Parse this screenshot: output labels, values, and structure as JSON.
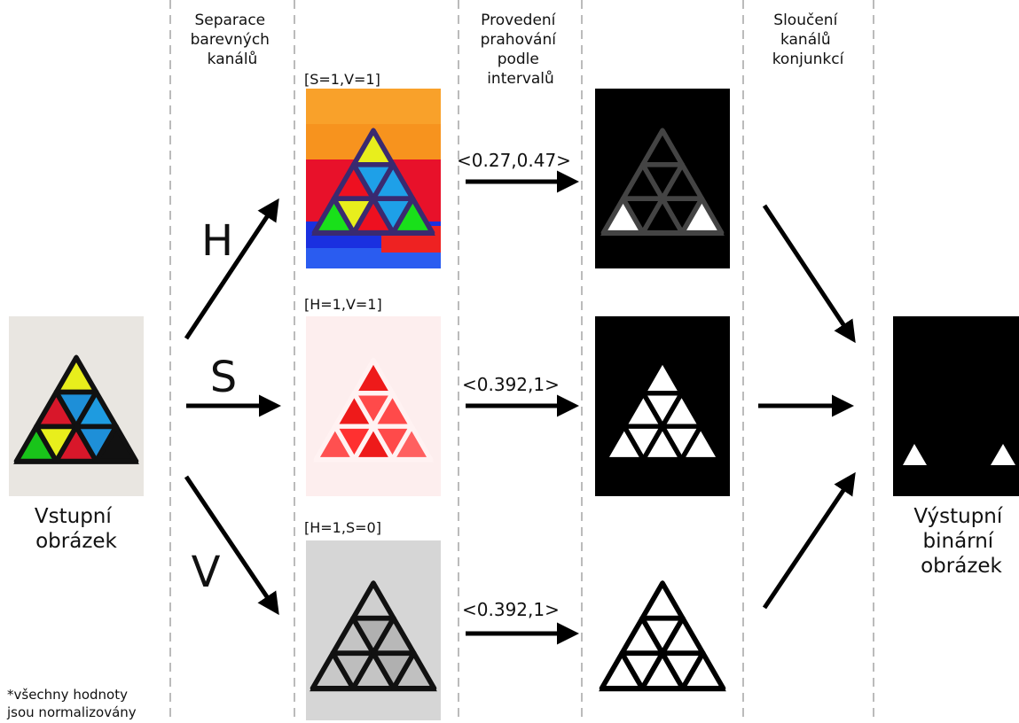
{
  "headers": {
    "separation": [
      "Separace",
      "barevných",
      "kanálů"
    ],
    "thresholding": [
      "Provedení",
      "prahování",
      "podle",
      "intervalů"
    ],
    "merging": [
      "Sloučení",
      "kanálů",
      "konjunkcí"
    ]
  },
  "input": {
    "label": [
      "Vstupní",
      "obrázek"
    ]
  },
  "output": {
    "label": [
      "Výstupní",
      "binární",
      "obrázek"
    ]
  },
  "channels": [
    {
      "letter": "H",
      "params": "[S=1,V=1]",
      "interval": "<0.27,0.47>"
    },
    {
      "letter": "S",
      "params": "[H=1,V=1]",
      "interval": "<0.392,1>"
    },
    {
      "letter": "V",
      "params": "[H=1,S=0]",
      "interval": "<0.392,1>"
    }
  ],
  "footnote": [
    "*všechny hodnoty",
    "jsou normalizovány"
  ]
}
